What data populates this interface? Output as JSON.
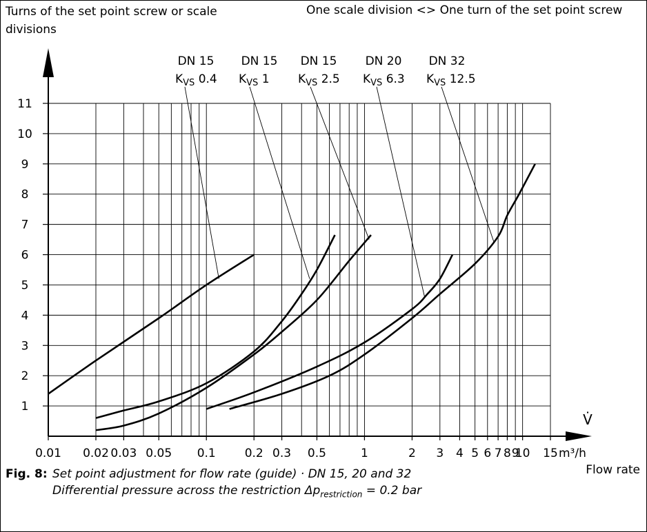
{
  "chart_data": {
    "type": "line",
    "xscale": "log",
    "xlim": [
      0.01,
      15
    ],
    "ylim": [
      0,
      11
    ],
    "grid": true,
    "ylabel": "Turns of the set point screw or scale divisions",
    "note": "One scale division <> One turn of the set point screw",
    "xlabel_symbol": "V̇",
    "xunit": "m³/h",
    "xlabel": "Flow rate",
    "y_ticks": [
      1,
      2,
      3,
      4,
      5,
      6,
      7,
      8,
      9,
      10,
      11
    ],
    "x_ticks": [
      {
        "v": 0.01,
        "label": "0.01"
      },
      {
        "v": 0.02,
        "label": "0.02"
      },
      {
        "v": 0.03,
        "label": "0.03"
      },
      {
        "v": 0.05,
        "label": "0.05"
      },
      {
        "v": 0.1,
        "label": "0.1"
      },
      {
        "v": 0.2,
        "label": "0.2"
      },
      {
        "v": 0.3,
        "label": "0.3"
      },
      {
        "v": 0.5,
        "label": "0.5"
      },
      {
        "v": 1,
        "label": "1"
      },
      {
        "v": 2,
        "label": "2"
      },
      {
        "v": 3,
        "label": "3"
      },
      {
        "v": 4,
        "label": "4"
      },
      {
        "v": 5,
        "label": "5"
      },
      {
        "v": 6,
        "label": "6"
      },
      {
        "v": 7,
        "label": "7"
      },
      {
        "v": 8,
        "label": "8"
      },
      {
        "v": 9,
        "label": "9"
      },
      {
        "v": 10,
        "label": "10"
      },
      {
        "v": 15,
        "label": "15"
      }
    ],
    "series": [
      {
        "dn": "DN 15",
        "kvs": "0.4",
        "points": [
          [
            0.01,
            1.4
          ],
          [
            0.02,
            2.5
          ],
          [
            0.05,
            3.9
          ],
          [
            0.1,
            5.0
          ],
          [
            0.2,
            6.0
          ]
        ]
      },
      {
        "dn": "DN 15",
        "kvs": "1",
        "points": [
          [
            0.02,
            0.6
          ],
          [
            0.03,
            0.85
          ],
          [
            0.05,
            1.15
          ],
          [
            0.1,
            1.75
          ],
          [
            0.2,
            2.8
          ],
          [
            0.3,
            3.8
          ],
          [
            0.4,
            4.7
          ],
          [
            0.5,
            5.5
          ],
          [
            0.65,
            6.65
          ]
        ]
      },
      {
        "dn": "DN 15",
        "kvs": "2.5",
        "points": [
          [
            0.02,
            0.2
          ],
          [
            0.03,
            0.35
          ],
          [
            0.05,
            0.75
          ],
          [
            0.1,
            1.6
          ],
          [
            0.2,
            2.7
          ],
          [
            0.3,
            3.45
          ],
          [
            0.5,
            4.5
          ],
          [
            0.8,
            5.8
          ],
          [
            1.1,
            6.65
          ]
        ]
      },
      {
        "dn": "DN 20",
        "kvs": "6.3",
        "points": [
          [
            0.1,
            0.9
          ],
          [
            0.2,
            1.45
          ],
          [
            0.5,
            2.3
          ],
          [
            1,
            3.1
          ],
          [
            2,
            4.2
          ],
          [
            2.5,
            4.7
          ],
          [
            3,
            5.2
          ],
          [
            3.6,
            6.0
          ]
        ]
      },
      {
        "dn": "DN 32",
        "kvs": "12.5",
        "points": [
          [
            0.14,
            0.9
          ],
          [
            0.3,
            1.4
          ],
          [
            0.6,
            2.0
          ],
          [
            1,
            2.7
          ],
          [
            2,
            3.9
          ],
          [
            3,
            4.7
          ],
          [
            5,
            5.7
          ],
          [
            7,
            6.6
          ],
          [
            8,
            7.3
          ],
          [
            9.5,
            8.0
          ],
          [
            12,
            9.0
          ]
        ]
      }
    ],
    "label_pointers": [
      {
        "series": 0,
        "x": 0.12,
        "y": 5.2
      },
      {
        "series": 1,
        "x": 0.45,
        "y": 5.2
      },
      {
        "series": 2,
        "x": 1.07,
        "y": 6.5
      },
      {
        "series": 3,
        "x": 2.4,
        "y": 4.6
      },
      {
        "series": 4,
        "x": 6.6,
        "y": 6.4
      }
    ]
  },
  "caption": {
    "label": "Fig. 8:",
    "line1": "Set point adjustment for flow rate (guide) · DN 15, 20 and 32",
    "line2_prefix": "Differential pressure across the restriction Δp",
    "line2_sub": "restriction",
    "line2_suffix": " = 0.2 bar"
  }
}
